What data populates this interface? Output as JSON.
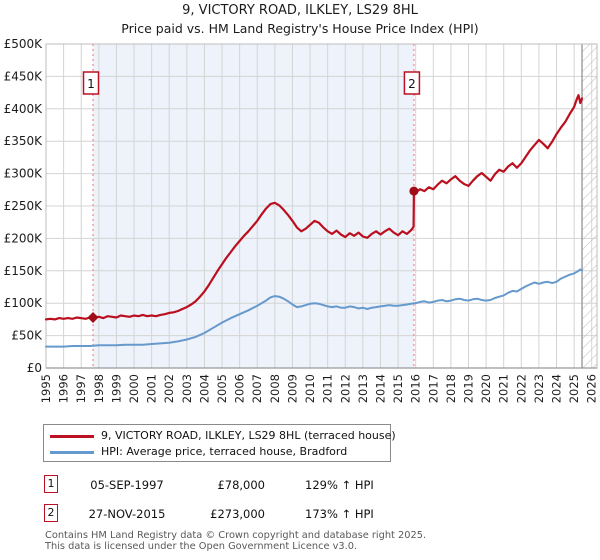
{
  "title": {
    "line1": "9, VICTORY ROAD, ILKLEY, LS29 8HL",
    "line2": "Price paid vs. HM Land Registry's House Price Index (HPI)"
  },
  "colors": {
    "property_line": "#bb0f1e",
    "hpi_line": "#6699cc",
    "sale_marker": "#a00c18",
    "marker_box_border": "#bb1122",
    "dashed_guide": "#f0909a",
    "shaded_band": "#edf2fb",
    "gridline": "#d4d4d4",
    "plot_border": "#bdbdbd",
    "hatch": "#c4c4c4"
  },
  "chart_data": {
    "type": "line",
    "x_range": [
      1995,
      2026.3
    ],
    "y_range": [
      0,
      500000
    ],
    "x_ticks": [
      1995,
      1996,
      1997,
      1998,
      1999,
      2000,
      2001,
      2002,
      2003,
      2004,
      2005,
      2006,
      2007,
      2008,
      2009,
      2010,
      2011,
      2012,
      2013,
      2014,
      2015,
      2016,
      2017,
      2018,
      2019,
      2020,
      2021,
      2022,
      2023,
      2024,
      2025,
      2026
    ],
    "y_ticks": [
      {
        "value": 0,
        "label": "£0"
      },
      {
        "value": 50000,
        "label": "£50K"
      },
      {
        "value": 100000,
        "label": "£100K"
      },
      {
        "value": 150000,
        "label": "£150K"
      },
      {
        "value": 200000,
        "label": "£200K"
      },
      {
        "value": 250000,
        "label": "£250K"
      },
      {
        "value": 300000,
        "label": "£300K"
      },
      {
        "value": 350000,
        "label": "£350K"
      },
      {
        "value": 400000,
        "label": "£400K"
      },
      {
        "value": 450000,
        "label": "£450K"
      },
      {
        "value": 500000,
        "label": "£500K"
      }
    ],
    "grid": true,
    "legend_position": "bottom",
    "shaded_region": {
      "from": 1997.67,
      "to": 2015.9
    },
    "hatch_region": {
      "from": 2025.45,
      "to": 2026.3
    },
    "markers": [
      {
        "label": "1",
        "x": 1997.67,
        "y": 78000,
        "shape": "diamond"
      },
      {
        "label": "2",
        "x": 2015.9,
        "y": 273000,
        "shape": "circle"
      }
    ],
    "series": [
      {
        "name": "9, VICTORY ROAD, ILKLEY, LS29 8HL (terraced house)",
        "color": "#bb0f1e",
        "width": 2.2,
        "points": [
          [
            1995.0,
            75000
          ],
          [
            1995.25,
            76000
          ],
          [
            1995.5,
            75000
          ],
          [
            1995.75,
            77000
          ],
          [
            1996.0,
            76000
          ],
          [
            1996.25,
            77000
          ],
          [
            1996.5,
            76000
          ],
          [
            1996.75,
            78000
          ],
          [
            1997.0,
            77000
          ],
          [
            1997.25,
            76000
          ],
          [
            1997.5,
            78000
          ],
          [
            1997.67,
            78000
          ],
          [
            1998.0,
            79000
          ],
          [
            1998.25,
            77000
          ],
          [
            1998.5,
            80000
          ],
          [
            1998.75,
            79000
          ],
          [
            1999.0,
            78000
          ],
          [
            1999.25,
            81000
          ],
          [
            1999.5,
            80000
          ],
          [
            1999.75,
            79000
          ],
          [
            2000.0,
            81000
          ],
          [
            2000.25,
            80000
          ],
          [
            2000.5,
            82000
          ],
          [
            2000.75,
            80000
          ],
          [
            2001.0,
            81000
          ],
          [
            2001.25,
            80000
          ],
          [
            2001.5,
            82000
          ],
          [
            2001.75,
            83000
          ],
          [
            2002.0,
            85000
          ],
          [
            2002.25,
            86000
          ],
          [
            2002.5,
            88000
          ],
          [
            2002.75,
            91000
          ],
          [
            2003.0,
            94000
          ],
          [
            2003.25,
            98000
          ],
          [
            2003.5,
            103000
          ],
          [
            2003.75,
            110000
          ],
          [
            2004.0,
            118000
          ],
          [
            2004.25,
            128000
          ],
          [
            2004.5,
            139000
          ],
          [
            2004.75,
            150000
          ],
          [
            2005.0,
            160000
          ],
          [
            2005.25,
            170000
          ],
          [
            2005.5,
            179000
          ],
          [
            2005.75,
            188000
          ],
          [
            2006.0,
            196000
          ],
          [
            2006.25,
            204000
          ],
          [
            2006.5,
            211000
          ],
          [
            2006.75,
            219000
          ],
          [
            2007.0,
            227000
          ],
          [
            2007.25,
            237000
          ],
          [
            2007.5,
            246000
          ],
          [
            2007.75,
            253000
          ],
          [
            2008.0,
            255000
          ],
          [
            2008.25,
            251000
          ],
          [
            2008.5,
            244000
          ],
          [
            2008.75,
            236000
          ],
          [
            2009.0,
            227000
          ],
          [
            2009.25,
            217000
          ],
          [
            2009.5,
            211000
          ],
          [
            2009.75,
            215000
          ],
          [
            2010.0,
            221000
          ],
          [
            2010.25,
            227000
          ],
          [
            2010.5,
            224000
          ],
          [
            2010.75,
            217000
          ],
          [
            2011.0,
            211000
          ],
          [
            2011.25,
            207000
          ],
          [
            2011.5,
            212000
          ],
          [
            2011.75,
            206000
          ],
          [
            2012.0,
            202000
          ],
          [
            2012.25,
            208000
          ],
          [
            2012.5,
            204000
          ],
          [
            2012.75,
            209000
          ],
          [
            2013.0,
            203000
          ],
          [
            2013.25,
            201000
          ],
          [
            2013.5,
            207000
          ],
          [
            2013.75,
            211000
          ],
          [
            2014.0,
            206000
          ],
          [
            2014.25,
            211000
          ],
          [
            2014.5,
            215000
          ],
          [
            2014.75,
            209000
          ],
          [
            2015.0,
            205000
          ],
          [
            2015.25,
            211000
          ],
          [
            2015.5,
            207000
          ],
          [
            2015.75,
            213000
          ],
          [
            2015.88,
            218000
          ],
          [
            2015.9,
            273000
          ],
          [
            2016.0,
            271000
          ],
          [
            2016.25,
            276000
          ],
          [
            2016.5,
            273000
          ],
          [
            2016.75,
            279000
          ],
          [
            2017.0,
            276000
          ],
          [
            2017.25,
            283000
          ],
          [
            2017.5,
            289000
          ],
          [
            2017.75,
            285000
          ],
          [
            2018.0,
            291000
          ],
          [
            2018.25,
            296000
          ],
          [
            2018.5,
            289000
          ],
          [
            2018.75,
            284000
          ],
          [
            2019.0,
            281000
          ],
          [
            2019.25,
            289000
          ],
          [
            2019.5,
            296000
          ],
          [
            2019.75,
            301000
          ],
          [
            2020.0,
            295000
          ],
          [
            2020.25,
            289000
          ],
          [
            2020.5,
            299000
          ],
          [
            2020.75,
            306000
          ],
          [
            2021.0,
            303000
          ],
          [
            2021.25,
            311000
          ],
          [
            2021.5,
            316000
          ],
          [
            2021.75,
            309000
          ],
          [
            2022.0,
            316000
          ],
          [
            2022.25,
            326000
          ],
          [
            2022.5,
            336000
          ],
          [
            2022.75,
            344000
          ],
          [
            2023.0,
            352000
          ],
          [
            2023.25,
            346000
          ],
          [
            2023.5,
            339000
          ],
          [
            2023.75,
            349000
          ],
          [
            2024.0,
            361000
          ],
          [
            2024.25,
            371000
          ],
          [
            2024.5,
            380000
          ],
          [
            2024.75,
            392000
          ],
          [
            2025.0,
            403000
          ],
          [
            2025.15,
            415000
          ],
          [
            2025.25,
            421000
          ],
          [
            2025.35,
            409000
          ],
          [
            2025.45,
            416000
          ]
        ]
      },
      {
        "name": "HPI: Average price, terraced house, Bradford",
        "color": "#6699cc",
        "width": 2,
        "points": [
          [
            1995.0,
            33000
          ],
          [
            1995.5,
            33000
          ],
          [
            1996.0,
            33000
          ],
          [
            1996.5,
            34000
          ],
          [
            1997.0,
            34000
          ],
          [
            1997.5,
            34000
          ],
          [
            1998.0,
            35000
          ],
          [
            1998.5,
            35000
          ],
          [
            1999.0,
            35000
          ],
          [
            1999.5,
            36000
          ],
          [
            2000.0,
            36000
          ],
          [
            2000.5,
            36000
          ],
          [
            2001.0,
            37000
          ],
          [
            2001.5,
            38000
          ],
          [
            2002.0,
            39000
          ],
          [
            2002.5,
            41000
          ],
          [
            2003.0,
            44000
          ],
          [
            2003.5,
            48000
          ],
          [
            2004.0,
            54000
          ],
          [
            2004.5,
            62000
          ],
          [
            2005.0,
            70000
          ],
          [
            2005.5,
            77000
          ],
          [
            2006.0,
            83000
          ],
          [
            2006.5,
            89000
          ],
          [
            2007.0,
            96000
          ],
          [
            2007.5,
            104000
          ],
          [
            2007.75,
            109000
          ],
          [
            2008.0,
            111000
          ],
          [
            2008.25,
            110000
          ],
          [
            2008.5,
            107000
          ],
          [
            2008.75,
            103000
          ],
          [
            2009.0,
            98000
          ],
          [
            2009.25,
            94000
          ],
          [
            2009.5,
            95000
          ],
          [
            2009.75,
            97000
          ],
          [
            2010.0,
            99000
          ],
          [
            2010.25,
            100000
          ],
          [
            2010.5,
            99000
          ],
          [
            2010.75,
            97000
          ],
          [
            2011.0,
            95000
          ],
          [
            2011.25,
            94000
          ],
          [
            2011.5,
            95000
          ],
          [
            2011.75,
            93000
          ],
          [
            2012.0,
            93000
          ],
          [
            2012.25,
            95000
          ],
          [
            2012.5,
            94000
          ],
          [
            2012.75,
            92000
          ],
          [
            2013.0,
            93000
          ],
          [
            2013.25,
            91000
          ],
          [
            2013.5,
            93000
          ],
          [
            2013.75,
            94000
          ],
          [
            2014.0,
            95000
          ],
          [
            2014.25,
            96000
          ],
          [
            2014.5,
            97000
          ],
          [
            2014.75,
            96000
          ],
          [
            2015.0,
            96000
          ],
          [
            2015.25,
            97000
          ],
          [
            2015.5,
            98000
          ],
          [
            2015.75,
            99000
          ],
          [
            2015.9,
            100000
          ],
          [
            2016.0,
            100000
          ],
          [
            2016.25,
            102000
          ],
          [
            2016.5,
            103000
          ],
          [
            2016.75,
            101000
          ],
          [
            2017.0,
            102000
          ],
          [
            2017.25,
            104000
          ],
          [
            2017.5,
            105000
          ],
          [
            2017.75,
            103000
          ],
          [
            2018.0,
            104000
          ],
          [
            2018.25,
            106000
          ],
          [
            2018.5,
            107000
          ],
          [
            2018.75,
            105000
          ],
          [
            2019.0,
            104000
          ],
          [
            2019.25,
            106000
          ],
          [
            2019.5,
            107000
          ],
          [
            2019.75,
            105000
          ],
          [
            2020.0,
            104000
          ],
          [
            2020.25,
            105000
          ],
          [
            2020.5,
            108000
          ],
          [
            2020.75,
            110000
          ],
          [
            2021.0,
            112000
          ],
          [
            2021.25,
            116000
          ],
          [
            2021.5,
            119000
          ],
          [
            2021.75,
            118000
          ],
          [
            2022.0,
            122000
          ],
          [
            2022.25,
            126000
          ],
          [
            2022.5,
            129000
          ],
          [
            2022.75,
            132000
          ],
          [
            2023.0,
            130000
          ],
          [
            2023.25,
            132000
          ],
          [
            2023.5,
            133000
          ],
          [
            2023.75,
            131000
          ],
          [
            2024.0,
            133000
          ],
          [
            2024.25,
            138000
          ],
          [
            2024.5,
            141000
          ],
          [
            2024.75,
            144000
          ],
          [
            2025.0,
            146000
          ],
          [
            2025.2,
            149000
          ],
          [
            2025.35,
            152000
          ],
          [
            2025.45,
            151000
          ]
        ]
      }
    ]
  },
  "legend": {
    "items": [
      {
        "label": "9, VICTORY ROAD, ILKLEY, LS29 8HL (terraced house)",
        "color": "#bb0f1e"
      },
      {
        "label": "HPI: Average price, terraced house, Bradford",
        "color": "#6699cc"
      }
    ]
  },
  "annotations": [
    {
      "num": "1",
      "date": "05-SEP-1997",
      "price": "£78,000",
      "hpi": "129% ↑ HPI"
    },
    {
      "num": "2",
      "date": "27-NOV-2015",
      "price": "£273,000",
      "hpi": "173% ↑ HPI"
    }
  ],
  "footer": {
    "line1": "Contains HM Land Registry data © Crown copyright and database right 2025.",
    "line2": "This data is licensed under the Open Government Licence v3.0."
  }
}
